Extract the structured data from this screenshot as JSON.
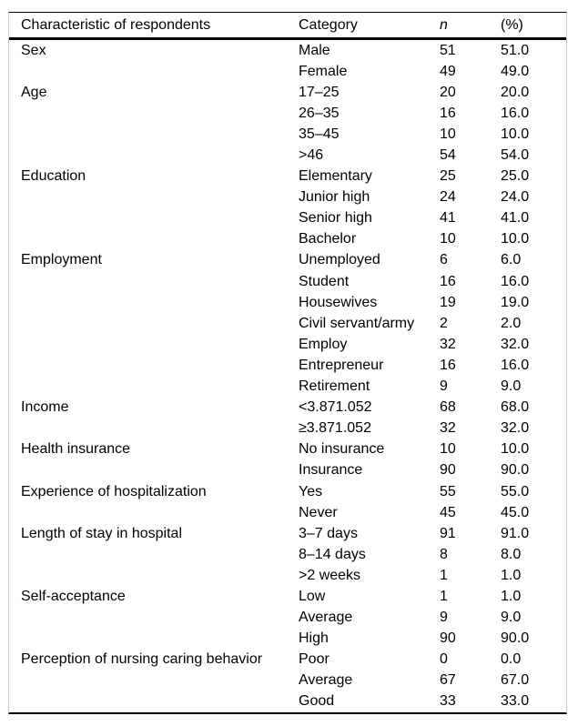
{
  "colors": {
    "background": "#ffffff",
    "text": "#000000",
    "rule": "#000000",
    "side_hairline": "#cccccc"
  },
  "table": {
    "columns": [
      "Characteristic of respondents",
      "Category",
      "n",
      "(%)"
    ],
    "groups": [
      {
        "characteristic": "Sex",
        "rows": [
          [
            "Male",
            "51",
            "51.0"
          ],
          [
            "Female",
            "49",
            "49.0"
          ]
        ]
      },
      {
        "characteristic": "Age",
        "rows": [
          [
            "17–25",
            "20",
            "20.0"
          ],
          [
            "26–35",
            "16",
            "16.0"
          ],
          [
            "35–45",
            "10",
            "10.0"
          ],
          [
            ">46",
            "54",
            "54.0"
          ]
        ]
      },
      {
        "characteristic": "Education",
        "rows": [
          [
            "Elementary",
            "25",
            "25.0"
          ],
          [
            "Junior high",
            "24",
            "24.0"
          ],
          [
            "Senior high",
            "41",
            "41.0"
          ],
          [
            "Bachelor",
            "10",
            "10.0"
          ]
        ]
      },
      {
        "characteristic": "Employment",
        "rows": [
          [
            "Unemployed",
            "6",
            "6.0"
          ],
          [
            "Student",
            "16",
            "16.0"
          ],
          [
            "Housewives",
            "19",
            "19.0"
          ],
          [
            "Civil servant/army",
            "2",
            "2.0"
          ],
          [
            "Employ",
            "32",
            "32.0"
          ],
          [
            "Entrepreneur",
            "16",
            "16.0"
          ],
          [
            "Retirement",
            "9",
            "9.0"
          ]
        ]
      },
      {
        "characteristic": "Income",
        "rows": [
          [
            "<3.871.052",
            "68",
            "68.0"
          ],
          [
            "≥3.871.052",
            "32",
            "32.0"
          ]
        ]
      },
      {
        "characteristic": "Health insurance",
        "rows": [
          [
            "No insurance",
            "10",
            "10.0"
          ],
          [
            "Insurance",
            "90",
            "90.0"
          ]
        ]
      },
      {
        "characteristic": "Experience of hospitalization",
        "rows": [
          [
            "Yes",
            "55",
            "55.0"
          ],
          [
            "Never",
            "45",
            "45.0"
          ]
        ]
      },
      {
        "characteristic": "Length of stay in hospital",
        "rows": [
          [
            "3–7 days",
            "91",
            "91.0"
          ],
          [
            "8–14 days",
            "8",
            "8.0"
          ],
          [
            ">2 weeks",
            "1",
            "1.0"
          ]
        ]
      },
      {
        "characteristic": "Self-acceptance",
        "rows": [
          [
            "Low",
            "1",
            "1.0"
          ],
          [
            "Average",
            "9",
            "9.0"
          ],
          [
            "High",
            "90",
            "90.0"
          ]
        ]
      },
      {
        "characteristic": "Perception of nursing caring behavior",
        "rows": [
          [
            "Poor",
            "0",
            "0.0"
          ],
          [
            "Average",
            "67",
            "67.0"
          ],
          [
            "Good",
            "33",
            "33.0"
          ]
        ]
      }
    ]
  }
}
